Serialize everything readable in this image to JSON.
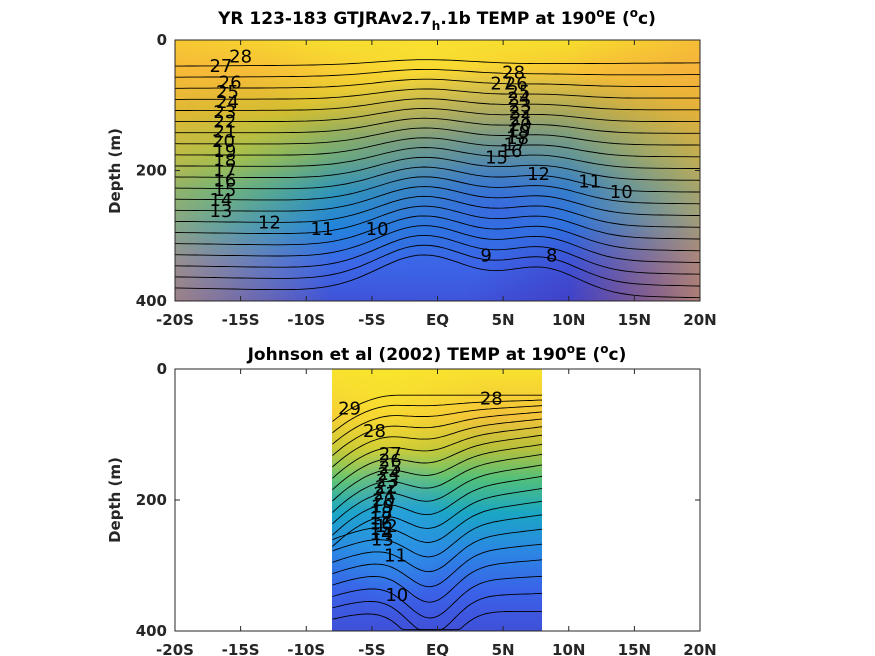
{
  "chart_data": [
    {
      "type": "contour",
      "title_parts": [
        "YR 123-183 GTJRAv2.7",
        "h",
        ".1b TEMP at 190",
        "o",
        "E (",
        "o",
        "c)"
      ],
      "ylabel": "Depth (m)",
      "xlim": [
        -20,
        20
      ],
      "ylim": [
        400,
        0
      ],
      "x_ticks": [
        -20,
        -15,
        -10,
        -5,
        0,
        5,
        10,
        15,
        20
      ],
      "x_tick_labels": [
        "-20S",
        "-15S",
        "-10S",
        "-5S",
        "EQ",
        "5N",
        "10N",
        "15N",
        "20N"
      ],
      "y_ticks": [
        0,
        200,
        400
      ],
      "y_tick_labels": [
        "0",
        "200",
        "400"
      ],
      "data_x_range": [
        -20,
        20
      ],
      "contour_levels": [
        8,
        9,
        10,
        11,
        12,
        13,
        14,
        15,
        16,
        17,
        18,
        19,
        20,
        21,
        22,
        23,
        24,
        25,
        26,
        27,
        28
      ],
      "contour_labels": [
        "28",
        "27",
        "26",
        "25",
        "24",
        "23",
        "22",
        "21",
        "20",
        "19",
        "18",
        "17",
        "16",
        "15",
        "14",
        "13",
        "12",
        "11",
        "10",
        "9",
        "8",
        "28",
        "27",
        "26",
        "25",
        "24",
        "23",
        "22",
        "21",
        "20",
        "19",
        "18",
        "17",
        "16",
        "15",
        "12",
        "11",
        "10"
      ],
      "contour_label_positions": [
        [
          -15,
          25
        ],
        [
          -16.5,
          40
        ],
        [
          -15.8,
          65
        ],
        [
          -16,
          80
        ],
        [
          -16,
          95
        ],
        [
          -16.2,
          110
        ],
        [
          -16.2,
          125
        ],
        [
          -16.2,
          140
        ],
        [
          -16.3,
          155
        ],
        [
          -16.2,
          170
        ],
        [
          -16.2,
          185
        ],
        [
          -16.2,
          200
        ],
        [
          -16.2,
          215
        ],
        [
          -16.2,
          230
        ],
        [
          -16.5,
          245
        ],
        [
          -16.5,
          262
        ],
        [
          -12.8,
          280
        ],
        [
          -8.8,
          290
        ],
        [
          -4.6,
          290
        ],
        [
          3.7,
          330
        ],
        [
          8.7,
          330
        ],
        [
          5.8,
          50
        ],
        [
          4.9,
          67
        ],
        [
          6.0,
          67
        ],
        [
          6.2,
          80
        ],
        [
          6.2,
          90
        ],
        [
          6.3,
          100
        ],
        [
          6.3,
          110
        ],
        [
          6.4,
          120
        ],
        [
          6.3,
          130
        ],
        [
          6.2,
          140
        ],
        [
          6.1,
          150
        ],
        [
          5.9,
          160
        ],
        [
          5.6,
          170
        ],
        [
          4.5,
          180
        ],
        [
          7.7,
          205
        ],
        [
          11.6,
          217
        ],
        [
          14.0,
          233
        ]
      ]
    },
    {
      "type": "contour",
      "title_parts": [
        "Johnson et al (2002) TEMP at 190",
        "o",
        "E (",
        "o",
        "c)"
      ],
      "ylabel": "Depth (m)",
      "xlim": [
        -20,
        20
      ],
      "ylim": [
        400,
        0
      ],
      "x_ticks": [
        -20,
        -15,
        -10,
        -5,
        0,
        5,
        10,
        15,
        20
      ],
      "x_tick_labels": [
        "-20S",
        "-15S",
        "-10S",
        "-5S",
        "EQ",
        "5N",
        "10N",
        "15N",
        "20N"
      ],
      "y_ticks": [
        0,
        200,
        400
      ],
      "y_tick_labels": [
        "0",
        "200",
        "400"
      ],
      "data_x_range": [
        -8,
        8
      ],
      "contour_levels": [
        10,
        11,
        12,
        13,
        14,
        15,
        16,
        17,
        18,
        19,
        20,
        21,
        22,
        23,
        24,
        25,
        26,
        27,
        28,
        29
      ],
      "contour_labels": [
        "29",
        "28",
        "28",
        "27",
        "26",
        "25",
        "24",
        "23",
        "22",
        "21",
        "20",
        "19",
        "18",
        "17",
        "16",
        "15",
        "14",
        "13",
        "12",
        "11",
        "10"
      ],
      "contour_label_positions": [
        [
          -6.7,
          60
        ],
        [
          -4.8,
          95
        ],
        [
          4.1,
          45
        ],
        [
          -3.6,
          130
        ],
        [
          -3.6,
          140
        ],
        [
          -3.6,
          150
        ],
        [
          -3.7,
          160
        ],
        [
          -3.8,
          170
        ],
        [
          -3.9,
          180
        ],
        [
          -4.0,
          190
        ],
        [
          -4.1,
          200
        ],
        [
          -4.2,
          210
        ],
        [
          -4.3,
          220
        ],
        [
          -4.3,
          228
        ],
        [
          -4.3,
          236
        ],
        [
          -4.3,
          244
        ],
        [
          -4.3,
          252
        ],
        [
          -4.2,
          260
        ],
        [
          -3.9,
          240
        ],
        [
          -3.2,
          285
        ],
        [
          -3.1,
          345
        ]
      ]
    }
  ]
}
